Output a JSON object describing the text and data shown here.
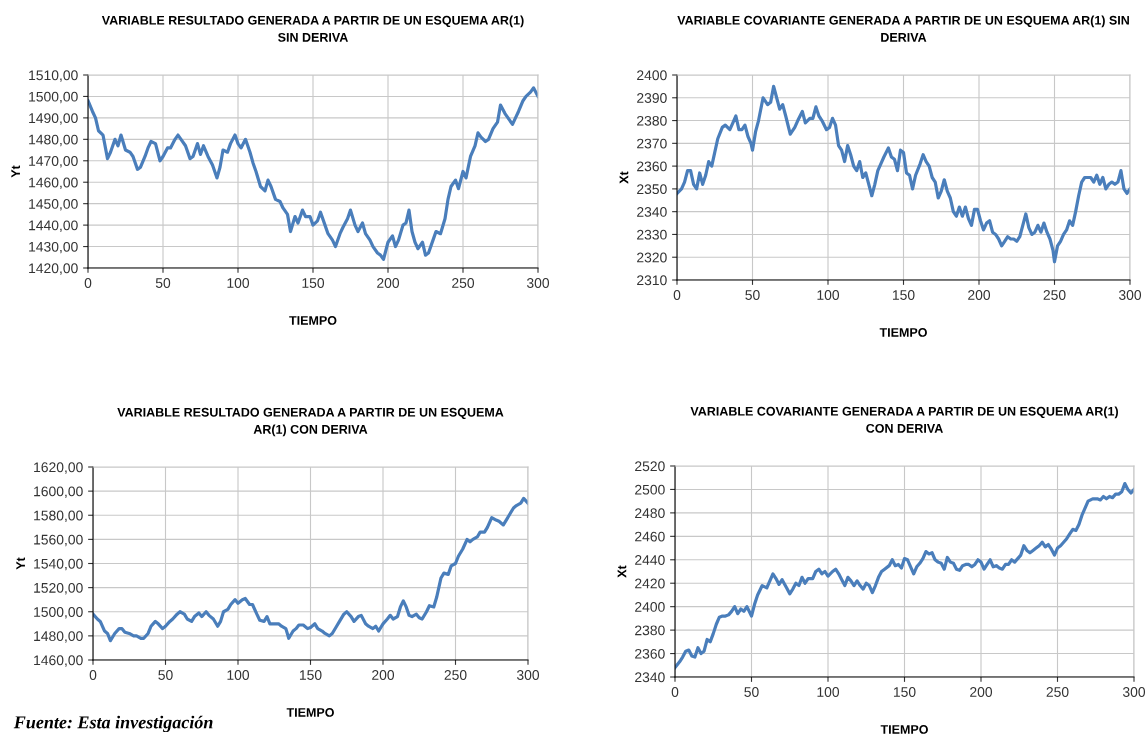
{
  "chart_data": [
    {
      "type": "line",
      "title": "VARIABLE RESULTADO GENERADA A PARTIR DE UN ESQUEMA AR(1)\nSIN DERIVA",
      "xlabel": "TIEMPO",
      "ylabel": "Yt",
      "xlim": [
        0,
        300
      ],
      "xticks": [
        0,
        50,
        100,
        150,
        200,
        250,
        300
      ],
      "ylim": [
        1420,
        1510
      ],
      "yticks": [
        {
          "value": 1420,
          "label": "1420,00"
        },
        {
          "value": 1430,
          "label": "1430,00"
        },
        {
          "value": 1440,
          "label": "1440,00"
        },
        {
          "value": 1450,
          "label": "1450,00"
        },
        {
          "value": 1460,
          "label": "1460,00"
        },
        {
          "value": 1470,
          "label": "1470,00"
        },
        {
          "value": 1480,
          "label": "1480,00"
        },
        {
          "value": 1490,
          "label": "1490,00"
        },
        {
          "value": 1500,
          "label": "1500,00"
        },
        {
          "value": 1510,
          "label": "1510,00"
        }
      ],
      "grid": true,
      "series": [
        {
          "color": "#4a7ebb",
          "x": [
            0,
            3,
            5,
            7,
            10,
            13,
            15,
            18,
            20,
            22,
            25,
            28,
            30,
            33,
            35,
            38,
            40,
            42,
            45,
            48,
            50,
            53,
            55,
            58,
            60,
            62,
            65,
            68,
            70,
            73,
            75,
            77,
            80,
            83,
            86,
            88,
            90,
            93,
            95,
            98,
            100,
            102,
            105,
            108,
            110,
            112,
            115,
            118,
            120,
            122,
            125,
            128,
            130,
            133,
            135,
            138,
            140,
            143,
            145,
            148,
            150,
            153,
            155,
            158,
            160,
            163,
            165,
            168,
            170,
            173,
            175,
            178,
            180,
            183,
            185,
            188,
            190,
            193,
            195,
            197,
            200,
            203,
            205,
            207,
            210,
            212,
            214,
            216,
            218,
            220,
            223,
            225,
            227,
            230,
            232,
            235,
            238,
            240,
            242,
            245,
            247,
            250,
            252,
            255,
            258,
            260,
            262,
            265,
            267,
            270,
            273,
            275,
            278,
            280,
            283,
            285,
            287,
            290,
            292,
            295,
            297,
            300
          ],
          "values": [
            1498,
            1493,
            1490,
            1484,
            1482,
            1471,
            1474,
            1480,
            1477,
            1482,
            1475,
            1474,
            1472,
            1466,
            1467,
            1472,
            1476,
            1479,
            1478,
            1470,
            1472,
            1476,
            1476,
            1480,
            1482,
            1480,
            1477,
            1471,
            1472,
            1478,
            1473,
            1477,
            1472,
            1468,
            1462,
            1467,
            1475,
            1474,
            1478,
            1482,
            1478,
            1476,
            1480,
            1474,
            1469,
            1465,
            1458,
            1456,
            1461,
            1458,
            1452,
            1451,
            1448,
            1445,
            1437,
            1444,
            1441,
            1447,
            1444,
            1444,
            1440,
            1442,
            1446,
            1440,
            1436,
            1433,
            1430,
            1436,
            1439,
            1443,
            1447,
            1440,
            1437,
            1441,
            1436,
            1433,
            1430,
            1427,
            1426,
            1424,
            1432,
            1435,
            1430,
            1433,
            1440,
            1441,
            1447,
            1437,
            1432,
            1429,
            1432,
            1426,
            1427,
            1433,
            1437,
            1436,
            1443,
            1452,
            1458,
            1461,
            1457,
            1465,
            1462,
            1472,
            1477,
            1483,
            1481,
            1479,
            1480,
            1485,
            1488,
            1496,
            1492,
            1490,
            1487,
            1490,
            1493,
            1498,
            1500,
            1502,
            1504,
            1500
          ]
        }
      ]
    },
    {
      "type": "line",
      "title": "VARIABLE COVARIANTE GENERADA A PARTIR DE UN ESQUEMA AR(1) SIN\nDERIVA",
      "xlabel": "TIEMPO",
      "ylabel": "Xt",
      "xlim": [
        0,
        300
      ],
      "xticks": [
        0,
        50,
        100,
        150,
        200,
        250,
        300
      ],
      "ylim": [
        2310,
        2400
      ],
      "yticks": [
        2310,
        2320,
        2330,
        2340,
        2350,
        2360,
        2370,
        2380,
        2390,
        2400
      ],
      "grid": true,
      "series": [
        {
          "color": "#4a7ebb",
          "x": [
            0,
            3,
            5,
            7,
            9,
            11,
            13,
            15,
            17,
            19,
            21,
            23,
            25,
            27,
            30,
            32,
            35,
            37,
            39,
            41,
            43,
            45,
            47,
            49,
            50,
            52,
            54,
            57,
            60,
            62,
            64,
            66,
            68,
            70,
            72,
            75,
            78,
            80,
            83,
            85,
            88,
            90,
            92,
            94,
            96,
            99,
            101,
            103,
            105,
            107,
            109,
            111,
            113,
            115,
            117,
            119,
            121,
            123,
            125,
            127,
            129,
            131,
            133,
            135,
            137,
            140,
            142,
            144,
            146,
            148,
            150,
            152,
            154,
            156,
            158,
            161,
            163,
            165,
            167,
            169,
            171,
            173,
            175,
            177,
            179,
            181,
            183,
            185,
            187,
            189,
            191,
            193,
            195,
            197,
            199,
            201,
            203,
            205,
            207,
            209,
            211,
            213,
            215,
            217,
            219,
            221,
            223,
            225,
            227,
            229,
            231,
            233,
            235,
            237,
            239,
            241,
            243,
            245,
            247,
            249,
            250,
            252,
            254,
            256,
            258,
            260,
            262,
            264,
            266,
            268,
            270,
            272,
            274,
            276,
            278,
            280,
            282,
            284,
            286,
            288,
            290,
            292,
            294,
            296,
            298,
            300
          ],
          "values": [
            2348,
            2350,
            2353,
            2358,
            2358,
            2352,
            2350,
            2357,
            2352,
            2356,
            2362,
            2360,
            2366,
            2372,
            2377,
            2378,
            2376,
            2379,
            2382,
            2376,
            2376,
            2378,
            2373,
            2370,
            2367,
            2375,
            2380,
            2390,
            2387,
            2388,
            2395,
            2390,
            2385,
            2387,
            2382,
            2374,
            2377,
            2380,
            2384,
            2379,
            2381,
            2381,
            2386,
            2382,
            2380,
            2376,
            2377,
            2381,
            2378,
            2369,
            2367,
            2362,
            2369,
            2365,
            2360,
            2358,
            2362,
            2355,
            2357,
            2352,
            2347,
            2352,
            2358,
            2361,
            2364,
            2368,
            2364,
            2363,
            2358,
            2367,
            2366,
            2357,
            2356,
            2350,
            2356,
            2361,
            2365,
            2362,
            2360,
            2355,
            2353,
            2346,
            2349,
            2354,
            2349,
            2346,
            2340,
            2338,
            2342,
            2338,
            2342,
            2337,
            2334,
            2341,
            2341,
            2336,
            2332,
            2335,
            2336,
            2331,
            2330,
            2328,
            2325,
            2327,
            2329,
            2328,
            2328,
            2327,
            2329,
            2334,
            2339,
            2333,
            2330,
            2331,
            2334,
            2331,
            2335,
            2331,
            2328,
            2323,
            2318,
            2325,
            2327,
            2330,
            2332,
            2336,
            2334,
            2340,
            2347,
            2353,
            2355,
            2355,
            2355,
            2353,
            2356,
            2352,
            2355,
            2350,
            2352,
            2353,
            2352,
            2353,
            2358,
            2350,
            2348,
            2350
          ]
        }
      ]
    },
    {
      "type": "line",
      "title": "VARIABLE RESULTADO GENERADA A PARTIR DE UN ESQUEMA\nAR(1) CON DERIVA",
      "xlabel": "TIEMPO",
      "ylabel": "Yt",
      "xlim": [
        0,
        300
      ],
      "xticks": [
        0,
        50,
        100,
        150,
        200,
        250,
        300
      ],
      "ylim": [
        1460,
        1620
      ],
      "yticks": [
        {
          "value": 1460,
          "label": "1460,00"
        },
        {
          "value": 1480,
          "label": "1480,00"
        },
        {
          "value": 1500,
          "label": "1500,00"
        },
        {
          "value": 1520,
          "label": "1520,00"
        },
        {
          "value": 1540,
          "label": "1540,00"
        },
        {
          "value": 1560,
          "label": "1560,00"
        },
        {
          "value": 1580,
          "label": "1580,00"
        },
        {
          "value": 1600,
          "label": "1600,00"
        },
        {
          "value": 1620,
          "label": "1620,00"
        }
      ],
      "grid": true,
      "annotations": [
        "Fuente: Esta investigación"
      ],
      "series": [
        {
          "color": "#4a7ebb",
          "x": [
            0,
            3,
            5,
            8,
            10,
            12,
            15,
            18,
            20,
            22,
            25,
            28,
            30,
            33,
            35,
            38,
            40,
            43,
            45,
            48,
            50,
            53,
            55,
            58,
            60,
            63,
            65,
            68,
            70,
            73,
            75,
            78,
            80,
            83,
            86,
            88,
            90,
            93,
            95,
            98,
            100,
            103,
            105,
            108,
            110,
            113,
            115,
            118,
            120,
            122,
            125,
            128,
            130,
            133,
            135,
            138,
            140,
            142,
            145,
            148,
            150,
            153,
            155,
            158,
            160,
            163,
            165,
            168,
            170,
            173,
            175,
            178,
            180,
            183,
            185,
            188,
            190,
            193,
            195,
            197,
            200,
            203,
            205,
            207,
            210,
            212,
            214,
            216,
            218,
            220,
            223,
            225,
            227,
            230,
            232,
            235,
            237,
            240,
            242,
            245,
            247,
            250,
            252,
            255,
            258,
            260,
            262,
            265,
            267,
            270,
            272,
            275,
            278,
            280,
            283,
            285,
            287,
            290,
            292,
            295,
            297,
            300
          ],
          "values": [
            1498,
            1494,
            1492,
            1484,
            1482,
            1476,
            1482,
            1486,
            1486,
            1483,
            1482,
            1480,
            1480,
            1478,
            1478,
            1482,
            1488,
            1492,
            1490,
            1486,
            1488,
            1492,
            1494,
            1498,
            1500,
            1498,
            1494,
            1492,
            1496,
            1499,
            1496,
            1500,
            1497,
            1494,
            1488,
            1492,
            1500,
            1502,
            1506,
            1510,
            1507,
            1510,
            1511,
            1506,
            1506,
            1498,
            1493,
            1492,
            1496,
            1490,
            1490,
            1490,
            1488,
            1486,
            1478,
            1484,
            1486,
            1489,
            1489,
            1486,
            1487,
            1490,
            1486,
            1484,
            1482,
            1480,
            1482,
            1488,
            1492,
            1498,
            1500,
            1496,
            1492,
            1496,
            1497,
            1490,
            1488,
            1486,
            1488,
            1484,
            1490,
            1494,
            1497,
            1494,
            1496,
            1504,
            1509,
            1504,
            1497,
            1496,
            1498,
            1495,
            1494,
            1500,
            1505,
            1504,
            1512,
            1528,
            1532,
            1531,
            1538,
            1540,
            1546,
            1552,
            1560,
            1558,
            1560,
            1562,
            1566,
            1566,
            1570,
            1578,
            1576,
            1575,
            1572,
            1576,
            1580,
            1586,
            1588,
            1590,
            1594,
            1590
          ]
        }
      ]
    },
    {
      "type": "line",
      "title": "VARIABLE COVARIANTE GENERADA A PARTIR DE UN ESQUEMA AR(1)\nCON DERIVA",
      "xlabel": "TIEMPO",
      "ylabel": "Xt",
      "xlim": [
        0,
        300
      ],
      "xticks": [
        0,
        50,
        100,
        150,
        200,
        250,
        300
      ],
      "ylim": [
        2340,
        2520
      ],
      "yticks": [
        2340,
        2360,
        2380,
        2400,
        2420,
        2440,
        2460,
        2480,
        2500,
        2520
      ],
      "grid": true,
      "series": [
        {
          "color": "#4a7ebb",
          "x": [
            0,
            3,
            5,
            7,
            9,
            11,
            13,
            15,
            17,
            19,
            21,
            23,
            25,
            27,
            29,
            31,
            33,
            35,
            37,
            39,
            41,
            43,
            45,
            47,
            50,
            52,
            54,
            57,
            60,
            62,
            64,
            66,
            68,
            70,
            73,
            75,
            77,
            79,
            81,
            83,
            85,
            87,
            90,
            92,
            94,
            96,
            98,
            100,
            103,
            105,
            107,
            109,
            111,
            113,
            115,
            117,
            119,
            121,
            123,
            125,
            127,
            129,
            131,
            133,
            135,
            137,
            140,
            142,
            144,
            146,
            148,
            150,
            152,
            154,
            156,
            158,
            160,
            162,
            164,
            166,
            168,
            170,
            172,
            174,
            176,
            178,
            180,
            182,
            184,
            186,
            188,
            190,
            192,
            194,
            196,
            198,
            200,
            202,
            204,
            206,
            208,
            210,
            212,
            214,
            216,
            218,
            220,
            222,
            224,
            226,
            228,
            230,
            232,
            234,
            236,
            238,
            240,
            242,
            244,
            246,
            248,
            250,
            252,
            254,
            256,
            258,
            260,
            262,
            264,
            266,
            268,
            270,
            273,
            276,
            278,
            280,
            282,
            284,
            286,
            288,
            290,
            292,
            294,
            296,
            298,
            300
          ],
          "values": [
            2348,
            2353,
            2357,
            2362,
            2363,
            2358,
            2357,
            2365,
            2360,
            2362,
            2372,
            2370,
            2377,
            2385,
            2391,
            2392,
            2392,
            2393,
            2396,
            2400,
            2394,
            2398,
            2396,
            2400,
            2392,
            2402,
            2410,
            2418,
            2416,
            2422,
            2428,
            2424,
            2419,
            2423,
            2416,
            2411,
            2415,
            2420,
            2418,
            2425,
            2420,
            2424,
            2424,
            2430,
            2432,
            2428,
            2430,
            2426,
            2430,
            2432,
            2428,
            2423,
            2418,
            2425,
            2422,
            2418,
            2422,
            2418,
            2415,
            2420,
            2418,
            2412,
            2418,
            2425,
            2430,
            2432,
            2435,
            2440,
            2435,
            2436,
            2433,
            2441,
            2440,
            2434,
            2428,
            2434,
            2437,
            2441,
            2447,
            2445,
            2446,
            2440,
            2438,
            2437,
            2432,
            2442,
            2438,
            2437,
            2432,
            2431,
            2435,
            2436,
            2436,
            2434,
            2436,
            2440,
            2438,
            2432,
            2436,
            2440,
            2434,
            2435,
            2433,
            2432,
            2436,
            2436,
            2440,
            2438,
            2441,
            2444,
            2452,
            2448,
            2446,
            2448,
            2450,
            2452,
            2455,
            2451,
            2453,
            2449,
            2444,
            2450,
            2452,
            2455,
            2458,
            2462,
            2466,
            2465,
            2470,
            2478,
            2484,
            2490,
            2492,
            2492,
            2491,
            2494,
            2492,
            2494,
            2493,
            2496,
            2496,
            2498,
            2505,
            2500,
            2497,
            2500
          ]
        }
      ]
    }
  ]
}
